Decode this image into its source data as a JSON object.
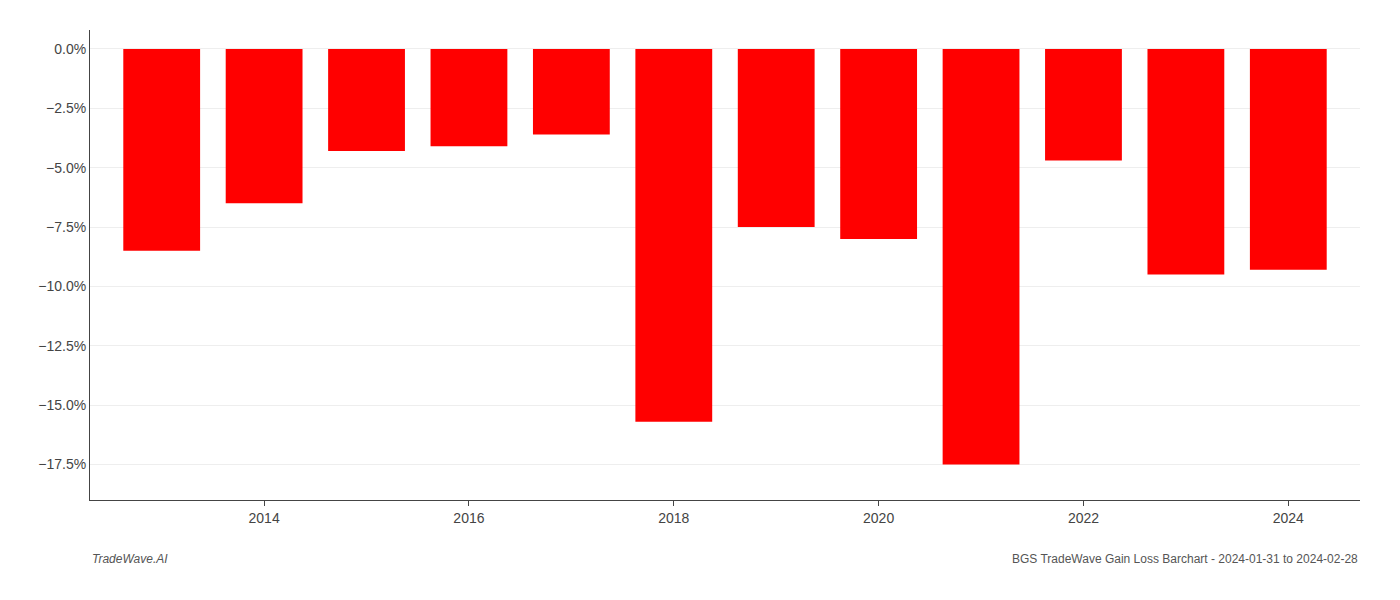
{
  "chart_data": {
    "type": "bar",
    "x": [
      2013,
      2014,
      2015,
      2016,
      2017,
      2018,
      2019,
      2020,
      2021,
      2022,
      2023,
      2024
    ],
    "values": [
      -8.5,
      -6.5,
      -4.3,
      -4.1,
      -3.6,
      -15.7,
      -7.5,
      -8.0,
      -17.5,
      -4.7,
      -9.5,
      -9.3
    ],
    "color": "#ff0000",
    "xlim": [
      2012.3,
      2024.7
    ],
    "xticks": [
      2014,
      2016,
      2018,
      2020,
      2022,
      2024
    ],
    "ylim": [
      -19.0,
      0.8
    ],
    "yticks": [
      {
        "value": 0.0,
        "label": "0.0%"
      },
      {
        "value": -2.5,
        "label": "−2.5%"
      },
      {
        "value": -5.0,
        "label": "−5.0%"
      },
      {
        "value": -7.5,
        "label": "−7.5%"
      },
      {
        "value": -10.0,
        "label": "−10.0%"
      },
      {
        "value": -12.5,
        "label": "−12.5%"
      },
      {
        "value": -15.0,
        "label": "−15.0%"
      },
      {
        "value": -17.5,
        "label": "−17.5%"
      }
    ],
    "grid": true,
    "annotations": [
      "TradeWave.AI",
      "BGS TradeWave Gain Loss Barchart - 2024-01-31 to 2024-02-28"
    ]
  }
}
